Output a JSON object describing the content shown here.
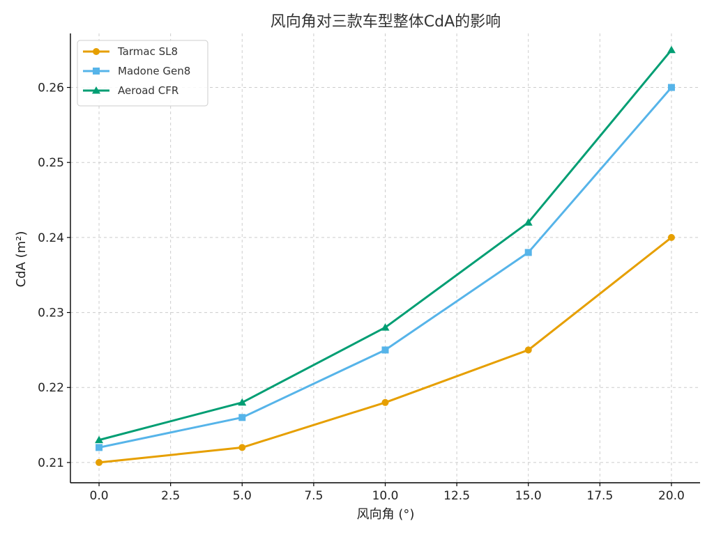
{
  "chart_data": {
    "type": "line",
    "title": "风向角对三款车型整体CdA的影响",
    "xlabel": "风向角 (°)",
    "ylabel": "CdA (m²)",
    "x": [
      0,
      5,
      10,
      15,
      20
    ],
    "xlim": [
      -1,
      21
    ],
    "ylim": [
      0.2073,
      0.2672
    ],
    "xticks": [
      0.0,
      2.5,
      5.0,
      7.5,
      10.0,
      12.5,
      15.0,
      17.5,
      20.0
    ],
    "xtick_labels": [
      "0.0",
      "2.5",
      "5.0",
      "7.5",
      "10.0",
      "12.5",
      "15.0",
      "17.5",
      "20.0"
    ],
    "yticks": [
      0.21,
      0.22,
      0.23,
      0.24,
      0.25,
      0.26
    ],
    "ytick_labels": [
      "0.21",
      "0.22",
      "0.23",
      "0.24",
      "0.25",
      "0.26"
    ],
    "grid": true,
    "legend_position": "top-left",
    "series": [
      {
        "name": "Tarmac SL8",
        "color": "#E69F00",
        "marker": "circle",
        "values": [
          0.21,
          0.212,
          0.218,
          0.225,
          0.24
        ]
      },
      {
        "name": "Madone Gen8",
        "color": "#56B4E9",
        "marker": "square",
        "values": [
          0.212,
          0.216,
          0.225,
          0.238,
          0.26
        ]
      },
      {
        "name": "Aeroad CFR",
        "color": "#009E73",
        "marker": "triangle",
        "values": [
          0.213,
          0.218,
          0.228,
          0.242,
          0.265
        ]
      }
    ]
  }
}
